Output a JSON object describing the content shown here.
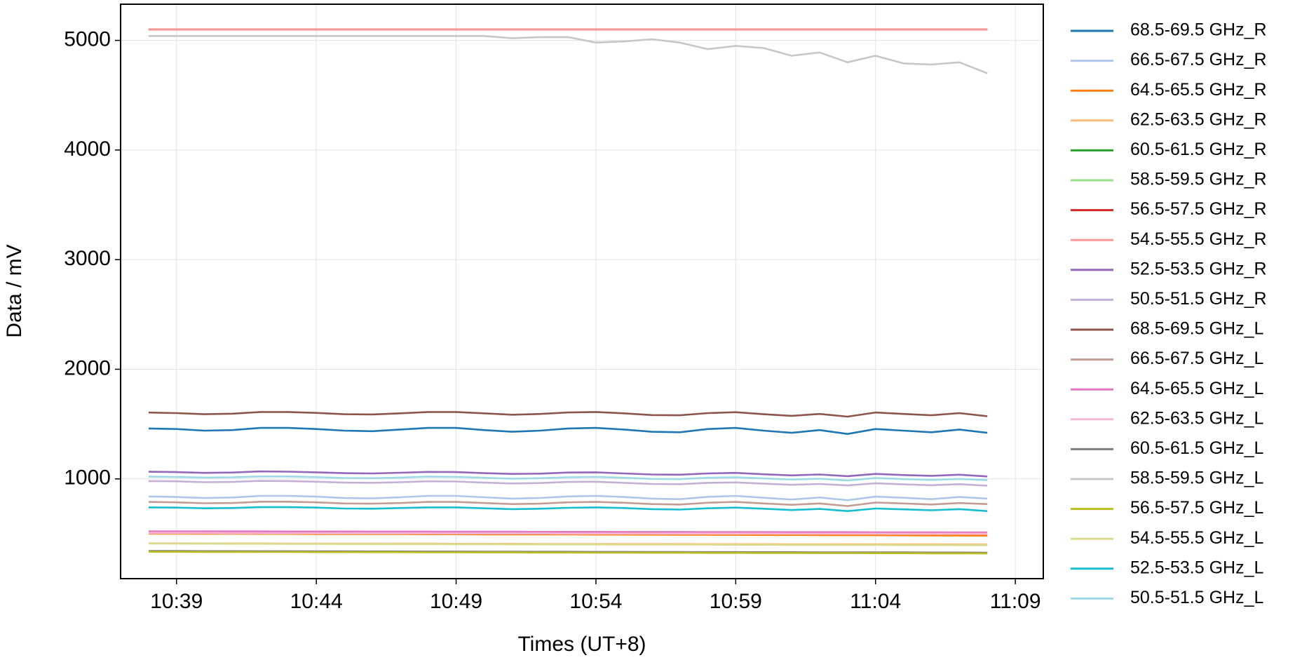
{
  "chart_data": {
    "type": "line",
    "x_label": "Times (UT+8)",
    "y_label": "Data / mV",
    "x": [
      "10:38",
      "10:39",
      "10:40",
      "10:41",
      "10:42",
      "10:43",
      "10:44",
      "10:45",
      "10:46",
      "10:47",
      "10:48",
      "10:49",
      "10:50",
      "10:51",
      "10:52",
      "10:53",
      "10:54",
      "10:55",
      "10:56",
      "10:57",
      "10:58",
      "10:59",
      "11:00",
      "11:01",
      "11:02",
      "11:03",
      "11:04",
      "11:05",
      "11:06",
      "11:07",
      "11:08"
    ],
    "xlim": [
      "10:37",
      "11:10"
    ],
    "xticks": [
      "10:39",
      "10:44",
      "10:49",
      "10:54",
      "10:59",
      "11:04",
      "11:09"
    ],
    "ylim": [
      90,
      5330
    ],
    "yticks": [
      1000,
      2000,
      3000,
      4000,
      5000
    ],
    "grid": true,
    "legend": "outside right",
    "series": [
      {
        "name": "68.5-69.5 GHz_R",
        "color": "#1f77b4",
        "values": [
          1460,
          1455,
          1440,
          1445,
          1465,
          1465,
          1455,
          1440,
          1435,
          1450,
          1465,
          1465,
          1445,
          1430,
          1440,
          1460,
          1465,
          1450,
          1430,
          1425,
          1455,
          1465,
          1440,
          1420,
          1445,
          1410,
          1455,
          1440,
          1425,
          1450,
          1420
        ]
      },
      {
        "name": "66.5-67.5 GHz_R",
        "color": "#aec7e8",
        "values": [
          840,
          835,
          825,
          830,
          845,
          845,
          838,
          825,
          822,
          832,
          845,
          845,
          832,
          820,
          826,
          840,
          845,
          835,
          820,
          815,
          836,
          845,
          828,
          812,
          830,
          805,
          838,
          828,
          815,
          835,
          820
        ]
      },
      {
        "name": "64.5-65.5 GHz_R",
        "color": "#ff7f0e",
        "values": [
          500,
          500,
          499,
          499,
          498,
          498,
          497,
          497,
          496,
          496,
          495,
          495,
          494,
          494,
          493,
          493,
          492,
          492,
          491,
          490,
          490,
          489,
          488,
          488,
          487,
          486,
          486,
          485,
          484,
          483,
          482
        ]
      },
      {
        "name": "62.5-63.5 GHz_R",
        "color": "#ffbb78",
        "values": [
          412,
          412,
          411,
          411,
          411,
          410,
          410,
          410,
          409,
          409,
          409,
          408,
          408,
          408,
          407,
          407,
          407,
          406,
          406,
          406,
          405,
          405,
          405,
          404,
          404,
          404,
          403,
          403,
          403,
          402,
          402
        ]
      },
      {
        "name": "60.5-61.5 GHz_R",
        "color": "#2ca02c",
        "values": [
          5100,
          5100,
          5100,
          5100,
          5100,
          5100,
          5100,
          5100,
          5100,
          5100,
          5100,
          5100,
          5100,
          5100,
          5100,
          5100,
          5100,
          5100,
          5100,
          5100,
          5100,
          5100,
          5100,
          5100,
          5100,
          5100,
          5100,
          5100,
          5100,
          5100,
          5100
        ]
      },
      {
        "name": "58.5-59.5 GHz_R",
        "color": "#98df8a",
        "values": [
          5100,
          5100,
          5100,
          5100,
          5100,
          5100,
          5100,
          5100,
          5100,
          5100,
          5100,
          5100,
          5100,
          5100,
          5100,
          5100,
          5100,
          5100,
          5100,
          5100,
          5100,
          5100,
          5100,
          5100,
          5100,
          5100,
          5100,
          5100,
          5100,
          5100,
          5100
        ]
      },
      {
        "name": "56.5-57.5 GHz_R",
        "color": "#d62728",
        "values": [
          5100,
          5100,
          5100,
          5100,
          5100,
          5100,
          5100,
          5100,
          5100,
          5100,
          5100,
          5100,
          5100,
          5100,
          5100,
          5100,
          5100,
          5100,
          5100,
          5100,
          5100,
          5100,
          5100,
          5100,
          5100,
          5100,
          5100,
          5100,
          5100,
          5100,
          5100
        ]
      },
      {
        "name": "54.5-55.5 GHz_R",
        "color": "#ff9896",
        "values": [
          5100,
          5100,
          5100,
          5100,
          5100,
          5100,
          5100,
          5100,
          5100,
          5100,
          5100,
          5100,
          5100,
          5100,
          5100,
          5100,
          5100,
          5100,
          5100,
          5100,
          5100,
          5100,
          5100,
          5100,
          5100,
          5100,
          5100,
          5100,
          5100,
          5100,
          5100
        ]
      },
      {
        "name": "52.5-53.5 GHz_R",
        "color": "#9467bd",
        "values": [
          1065,
          1062,
          1055,
          1058,
          1068,
          1066,
          1060,
          1052,
          1050,
          1056,
          1064,
          1062,
          1052,
          1045,
          1048,
          1058,
          1060,
          1050,
          1040,
          1038,
          1050,
          1055,
          1042,
          1032,
          1040,
          1025,
          1045,
          1035,
          1028,
          1038,
          1022
        ]
      },
      {
        "name": "50.5-51.5 GHz_R",
        "color": "#c5b0d5",
        "values": [
          980,
          978,
          970,
          972,
          982,
          980,
          974,
          966,
          964,
          970,
          978,
          976,
          966,
          958,
          962,
          972,
          974,
          964,
          954,
          952,
          964,
          968,
          956,
          946,
          954,
          940,
          960,
          950,
          942,
          952,
          938
        ]
      },
      {
        "name": "68.5-69.5 GHz_L",
        "color": "#8c564b",
        "values": [
          1605,
          1600,
          1590,
          1595,
          1610,
          1610,
          1602,
          1590,
          1588,
          1598,
          1610,
          1610,
          1598,
          1585,
          1592,
          1606,
          1610,
          1598,
          1582,
          1580,
          1600,
          1608,
          1590,
          1575,
          1592,
          1568,
          1606,
          1592,
          1580,
          1600,
          1572
        ]
      },
      {
        "name": "66.5-67.5 GHz_L",
        "color": "#c49c94",
        "values": [
          790,
          786,
          778,
          780,
          792,
          792,
          786,
          776,
          774,
          780,
          790,
          790,
          780,
          770,
          774,
          786,
          790,
          782,
          770,
          766,
          782,
          790,
          776,
          764,
          776,
          752,
          784,
          776,
          766,
          780,
          770
        ]
      },
      {
        "name": "64.5-65.5 GHz_L",
        "color": "#e377c2",
        "values": [
          522,
          522,
          521,
          521,
          521,
          520,
          520,
          520,
          519,
          519,
          519,
          518,
          518,
          518,
          517,
          517,
          517,
          516,
          516,
          516,
          515,
          515,
          515,
          514,
          514,
          514,
          513,
          513,
          513,
          512,
          512
        ]
      },
      {
        "name": "62.5-63.5 GHz_L",
        "color": "#f7b6d2",
        "values": [
          505,
          505,
          505,
          504,
          504,
          504,
          504,
          503,
          503,
          503,
          503,
          502,
          502,
          502,
          502,
          501,
          501,
          501,
          501,
          500,
          500,
          500,
          500,
          499,
          499,
          499,
          499,
          498,
          498,
          498,
          498
        ]
      },
      {
        "name": "60.5-61.5 GHz_L",
        "color": "#7f7f7f",
        "values": [
          342,
          342,
          341,
          341,
          340,
          340,
          339,
          339,
          338,
          338,
          337,
          337,
          336,
          336,
          335,
          335,
          334,
          334,
          333,
          333,
          332,
          332,
          331,
          331,
          330,
          330,
          329,
          329,
          328,
          328,
          327
        ]
      },
      {
        "name": "58.5-59.5 GHz_L",
        "color": "#c7c7c7",
        "values": [
          5040,
          5040,
          5040,
          5040,
          5040,
          5040,
          5040,
          5040,
          5040,
          5040,
          5040,
          5040,
          5040,
          5020,
          5030,
          5030,
          4980,
          4990,
          5010,
          4980,
          4920,
          4950,
          4930,
          4860,
          4890,
          4800,
          4860,
          4790,
          4780,
          4800,
          4700
        ]
      },
      {
        "name": "56.5-57.5 GHz_L",
        "color": "#bcbd22",
        "values": [
          335,
          335,
          334,
          334,
          333,
          333,
          332,
          332,
          331,
          331,
          330,
          330,
          329,
          329,
          328,
          328,
          327,
          327,
          326,
          326,
          325,
          325,
          324,
          324,
          323,
          323,
          322,
          322,
          321,
          321,
          320
        ]
      },
      {
        "name": "54.5-55.5 GHz_L",
        "color": "#dbdb8d",
        "values": [
          410,
          409,
          409,
          408,
          408,
          407,
          407,
          406,
          406,
          405,
          405,
          404,
          404,
          403,
          403,
          402,
          402,
          401,
          401,
          400,
          400,
          399,
          399,
          398,
          398,
          397,
          397,
          396,
          396,
          395,
          395
        ]
      },
      {
        "name": "52.5-53.5 GHz_L",
        "color": "#17becf",
        "values": [
          740,
          738,
          732,
          734,
          742,
          742,
          738,
          730,
          728,
          734,
          740,
          740,
          732,
          724,
          728,
          736,
          740,
          734,
          724,
          720,
          732,
          738,
          728,
          716,
          726,
          706,
          730,
          722,
          714,
          724,
          706
        ]
      },
      {
        "name": "50.5-51.5 GHz_L",
        "color": "#9edae5",
        "values": [
          1020,
          1018,
          1012,
          1014,
          1022,
          1022,
          1016,
          1008,
          1006,
          1012,
          1020,
          1018,
          1010,
          1002,
          1006,
          1014,
          1018,
          1010,
          1000,
          998,
          1010,
          1014,
          1004,
          994,
          1002,
          985,
          1008,
          998,
          990,
          1000,
          988
        ]
      }
    ]
  }
}
